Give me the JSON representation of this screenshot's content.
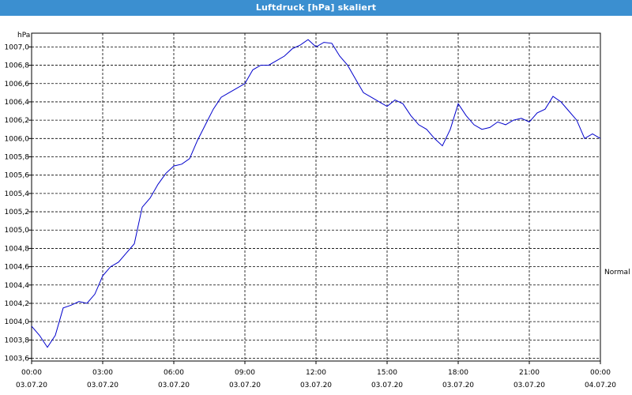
{
  "window": {
    "title": "Luftdruck [hPa] skaliert"
  },
  "chart_data": {
    "type": "line",
    "title": "Luftdruck [hPa] skaliert",
    "ylabel": "hPa",
    "side_label": "Normal",
    "ylim": [
      1003.57,
      1007.15
    ],
    "y_ticks": [
      "1003,6",
      "1003,8",
      "1004,0",
      "1004,2",
      "1004,4",
      "1004,6",
      "1004,8",
      "1005,0",
      "1005,2",
      "1005,4",
      "1005,6",
      "1005,8",
      "1006,0",
      "1006,2",
      "1006,4",
      "1006,6",
      "1006,8",
      "1007,0"
    ],
    "y_tick_values": [
      1003.6,
      1003.8,
      1004.0,
      1004.2,
      1004.4,
      1004.6,
      1004.8,
      1005.0,
      1005.2,
      1005.4,
      1005.6,
      1005.8,
      1006.0,
      1006.2,
      1006.4,
      1006.6,
      1006.8,
      1007.0
    ],
    "x_ticks": [
      {
        "time": "00:00",
        "date": "03.07.20"
      },
      {
        "time": "03:00",
        "date": "03.07.20"
      },
      {
        "time": "06:00",
        "date": "03.07.20"
      },
      {
        "time": "09:00",
        "date": "03.07.20"
      },
      {
        "time": "12:00",
        "date": "03.07.20"
      },
      {
        "time": "15:00",
        "date": "03.07.20"
      },
      {
        "time": "18:00",
        "date": "03.07.20"
      },
      {
        "time": "21:00",
        "date": "03.07.20"
      },
      {
        "time": "00:00",
        "date": "04.07.20"
      }
    ],
    "grid": true,
    "line_color": "#0000cc",
    "series": [
      {
        "x": [
          "00:00",
          "00:20",
          "00:40",
          "01:00",
          "01:20",
          "01:40",
          "02:00",
          "02:20",
          "02:40",
          "03:00",
          "03:20",
          "03:40",
          "04:00",
          "04:20",
          "04:40",
          "05:00",
          "05:20",
          "05:40",
          "06:00",
          "06:20",
          "06:40",
          "07:00",
          "07:20",
          "07:40",
          "08:00",
          "08:20",
          "08:40",
          "09:00",
          "09:20",
          "09:40",
          "10:00",
          "10:20",
          "10:40",
          "11:00",
          "11:20",
          "11:40",
          "12:00",
          "12:20",
          "12:40",
          "13:00",
          "13:20",
          "13:40",
          "14:00",
          "14:20",
          "14:40",
          "15:00",
          "15:20",
          "15:40",
          "16:00",
          "16:20",
          "16:40",
          "17:00",
          "17:20",
          "17:40",
          "18:00",
          "18:20",
          "18:40",
          "19:00",
          "19:20",
          "19:40",
          "20:00",
          "20:20",
          "20:40",
          "21:00",
          "21:20",
          "21:40",
          "22:00",
          "22:20",
          "22:40",
          "23:00",
          "23:20",
          "23:40",
          "00:00"
        ],
        "y": [
          1003.95,
          1003.85,
          1003.72,
          1003.85,
          1004.15,
          1004.18,
          1004.22,
          1004.2,
          1004.3,
          1004.5,
          1004.6,
          1004.65,
          1004.75,
          1004.85,
          1005.25,
          1005.35,
          1005.5,
          1005.62,
          1005.7,
          1005.72,
          1005.78,
          1005.98,
          1006.15,
          1006.32,
          1006.45,
          1006.5,
          1006.55,
          1006.6,
          1006.75,
          1006.8,
          1006.8,
          1006.85,
          1006.9,
          1006.98,
          1007.02,
          1007.08,
          1007.0,
          1007.05,
          1007.04,
          1006.9,
          1006.8,
          1006.65,
          1006.5,
          1006.45,
          1006.4,
          1006.35,
          1006.42,
          1006.38,
          1006.25,
          1006.15,
          1006.1,
          1006.0,
          1005.92,
          1006.1,
          1006.38,
          1006.25,
          1006.15,
          1006.1,
          1006.12,
          1006.18,
          1006.15,
          1006.2,
          1006.22,
          1006.18,
          1006.28,
          1006.32,
          1006.46,
          1006.4,
          1006.3,
          1006.2,
          1006.0,
          1006.05,
          1006.0
        ]
      }
    ]
  }
}
